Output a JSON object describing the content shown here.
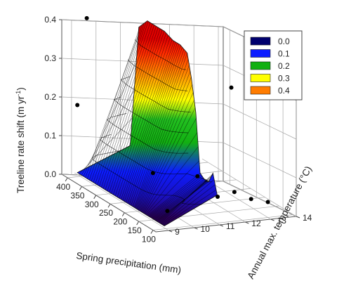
{
  "chart_data": {
    "type": "surface3d",
    "zlabel": "Treeline rate shift (m yr",
    "zlabel_sup": "-1",
    "zlabel_close": ")",
    "xlabel": "Spring precipitation (mm)",
    "ylabel": "Annual max. temperature (°C)",
    "x_ticks": [
      "400",
      "350",
      "300",
      "250",
      "200",
      "150",
      "100"
    ],
    "y_ticks": [
      "9",
      "10",
      "11",
      "12",
      "13",
      "14"
    ],
    "z_ticks": [
      "0.0",
      "0.1",
      "0.2",
      "0.3",
      "0.4"
    ],
    "xlim": [
      90,
      420
    ],
    "ylim": [
      8.5,
      14
    ],
    "zlim": [
      0,
      0.4
    ],
    "legend": {
      "placement": "top-right",
      "entries": [
        {
          "label": "0.0",
          "color": "#00006e"
        },
        {
          "label": "0.1",
          "color": "#0c1cff"
        },
        {
          "label": "0.2",
          "color": "#12b012"
        },
        {
          "label": "0.3",
          "color": "#ffff00"
        },
        {
          "label": "0.4",
          "color": "#ff7c00"
        }
      ]
    },
    "surface_profile": {
      "precipitation": [
        410,
        380,
        350,
        320,
        290,
        260,
        235,
        210,
        195,
        180,
        165,
        150,
        135,
        120,
        105
      ],
      "max_rate": [
        0.06,
        0.38,
        0.41,
        0.41,
        0.41,
        0.4,
        0.4,
        0.39,
        0.33,
        0.25,
        0.1,
        0.09,
        0.09,
        0.12,
        0.07
      ]
    },
    "observations": [
      {
        "precip": 395,
        "temp": 9.2,
        "rate": 0.41
      },
      {
        "precip": 410,
        "temp": 9.0,
        "rate": 0.18
      },
      {
        "precip": 300,
        "temp": 13.8,
        "rate": 0.24
      },
      {
        "precip": 190,
        "temp": 9.5,
        "rate": 0.1
      },
      {
        "precip": 150,
        "temp": 10.8,
        "rate": 0.1
      },
      {
        "precip": 115,
        "temp": 11.2,
        "rate": 0.06
      },
      {
        "precip": 110,
        "temp": 11.8,
        "rate": 0.07
      },
      {
        "precip": 105,
        "temp": 12.4,
        "rate": 0.05
      },
      {
        "precip": 100,
        "temp": 13.0,
        "rate": 0.04
      },
      {
        "precip": 148,
        "temp": 9.6,
        "rate": 0.02
      }
    ]
  }
}
